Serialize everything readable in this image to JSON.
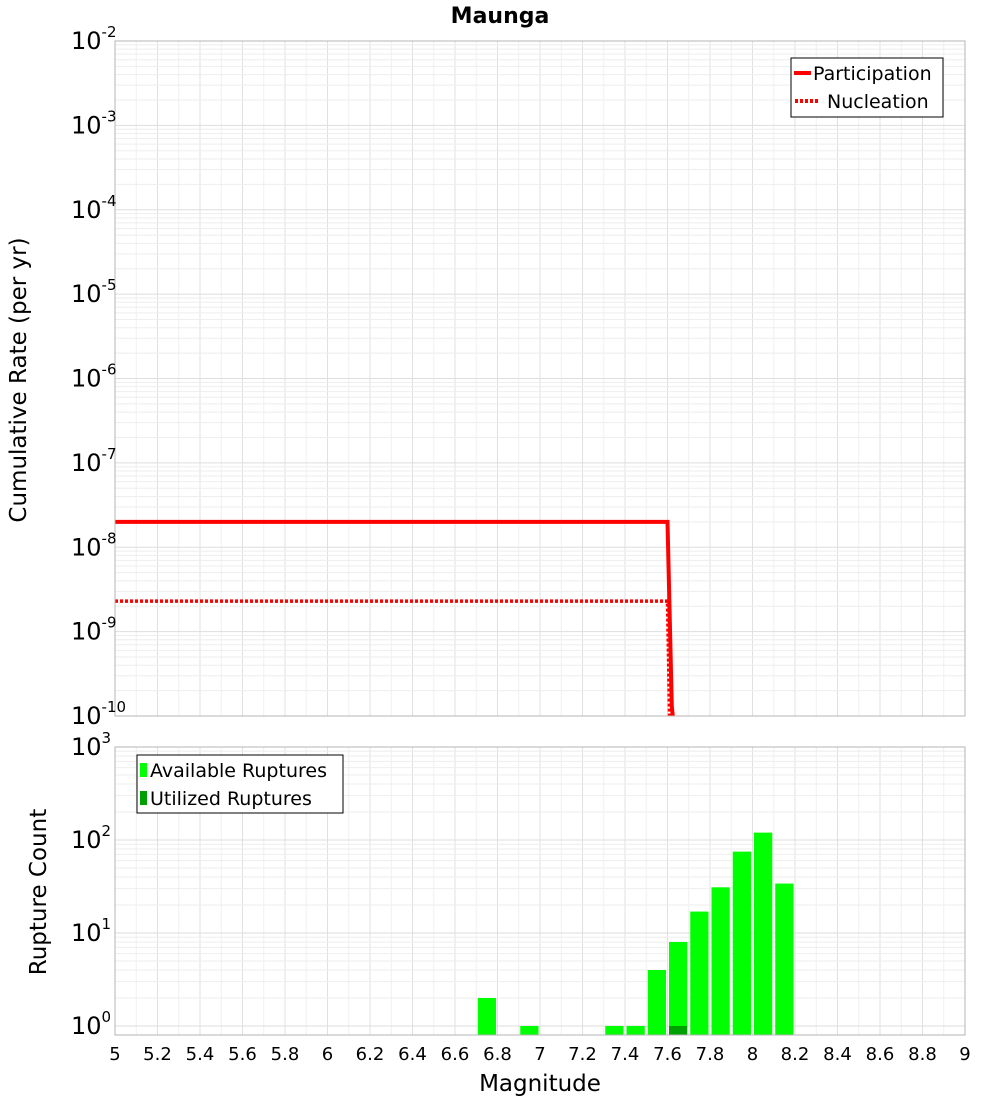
{
  "figure": {
    "title": "Maunga",
    "xlabel": "Magnitude"
  },
  "chart_data": [
    {
      "type": "line",
      "title": "Maunga",
      "xlabel": "Magnitude",
      "ylabel": "Cumulative Rate (per yr)",
      "y_scale": "log",
      "xlim": [
        5,
        9
      ],
      "ylim": [
        1e-10,
        0.01
      ],
      "x_ticks": [
        "5",
        "5.2",
        "5.4",
        "5.6",
        "5.8",
        "6",
        "6.2",
        "6.4",
        "6.6",
        "6.8",
        "7",
        "7.2",
        "7.4",
        "7.6",
        "7.8",
        "8",
        "8.2",
        "8.4",
        "8.6",
        "8.8",
        "9"
      ],
      "y_ticks": [
        {
          "value": 0.01,
          "base": "10",
          "exp": "-2"
        },
        {
          "value": 0.001,
          "base": "10",
          "exp": "-3"
        },
        {
          "value": 0.0001,
          "base": "10",
          "exp": "-4"
        },
        {
          "value": 1e-05,
          "base": "10",
          "exp": "-5"
        },
        {
          "value": 1e-06,
          "base": "10",
          "exp": "-6"
        },
        {
          "value": 1e-07,
          "base": "10",
          "exp": "-7"
        },
        {
          "value": 1e-08,
          "base": "10",
          "exp": "-8"
        },
        {
          "value": 1e-09,
          "base": "10",
          "exp": "-9"
        },
        {
          "value": 1e-10,
          "base": "10",
          "exp": "-10"
        }
      ],
      "grid": true,
      "legend_position": "top-right",
      "series": [
        {
          "name": "Participation",
          "style": "solid",
          "color": "#ff0000",
          "x": [
            5.0,
            7.6,
            7.62,
            7.625
          ],
          "y": [
            2e-08,
            2e-08,
            1.3e-10,
            1e-10
          ]
        },
        {
          "name": "Nucleation",
          "style": "dotted",
          "color": "#ff0000",
          "x": [
            5.0,
            7.6,
            7.61
          ],
          "y": [
            2.3e-09,
            2.3e-09,
            1e-10
          ]
        }
      ]
    },
    {
      "type": "bar",
      "xlabel": "Magnitude",
      "ylabel": "Rupture Count",
      "y_scale": "log",
      "xlim": [
        5,
        9
      ],
      "ylim": [
        0.8,
        1000
      ],
      "x_ticks": [
        "5",
        "5.2",
        "5.4",
        "5.6",
        "5.8",
        "6",
        "6.2",
        "6.4",
        "6.6",
        "6.8",
        "7",
        "7.2",
        "7.4",
        "7.6",
        "7.8",
        "8",
        "8.2",
        "8.4",
        "8.6",
        "8.8",
        "9"
      ],
      "y_ticks": [
        {
          "value": 1,
          "base": "10",
          "exp": "0"
        },
        {
          "value": 10,
          "base": "10",
          "exp": "1"
        },
        {
          "value": 100,
          "base": "10",
          "exp": "2"
        },
        {
          "value": 1000,
          "base": "10",
          "exp": "3"
        }
      ],
      "grid": true,
      "legend_position": "top-left",
      "bar_width": 0.1,
      "series": [
        {
          "name": "Available Ruptures",
          "color": "#00ff00",
          "x": [
            6.75,
            6.95,
            7.35,
            7.45,
            7.55,
            7.65,
            7.75,
            7.85,
            7.95,
            8.05,
            8.15
          ],
          "values": [
            2,
            1,
            1,
            1,
            4,
            8,
            17,
            31,
            75,
            120,
            34
          ]
        },
        {
          "name": "Utilized Ruptures",
          "color": "#00a000",
          "x": [
            7.65
          ],
          "values": [
            1
          ]
        }
      ]
    }
  ]
}
